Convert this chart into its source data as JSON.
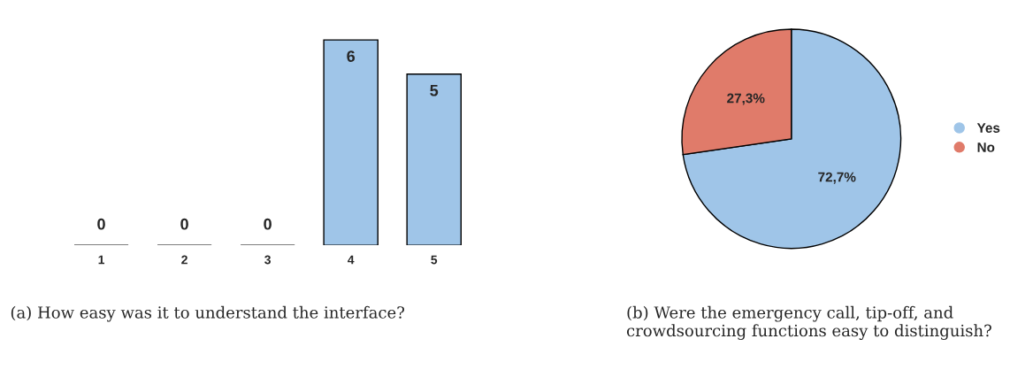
{
  "chart_data": [
    {
      "type": "bar",
      "title": "(a) How easy was it to understand the interface?",
      "categories": [
        "1",
        "2",
        "3",
        "4",
        "5"
      ],
      "values": [
        0,
        0,
        0,
        6,
        5
      ],
      "color": "#9fc5e8",
      "data_labels": true,
      "legend": false,
      "grid": false
    },
    {
      "type": "pie",
      "title": "(b) Were the emergency call, tip-off, and crowdsourcing functions easy to distinguish?",
      "categories": [
        "Yes",
        "No"
      ],
      "values": [
        72.7,
        27.3
      ],
      "colors": [
        "#9fc5e8",
        "#e07b6a"
      ],
      "value_labels": [
        "72,7%",
        "27,3%"
      ],
      "legend": "right"
    }
  ]
}
